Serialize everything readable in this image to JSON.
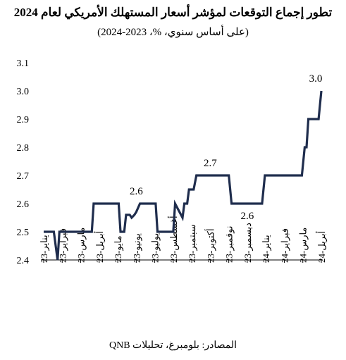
{
  "title": "تطور إجماع التوقعات لمؤشر أسعار المستهلك الأمريكي لعام 2024",
  "subtitle": "(على أساس سنوي، %، 2023-2024)",
  "source": "المصادر: بلومبرغ، تحليلات QNB",
  "chart_data": {
    "type": "line",
    "title": "تطور إجماع التوقعات لمؤشر أسعار المستهلك الأمريكي لعام 2024",
    "subtitle": "(على أساس سنوي، %، 2023-2024)",
    "xlabel": "",
    "ylabel": "",
    "ylim": [
      2.4,
      3.1
    ],
    "yticks": [
      "2.4",
      "2.5",
      "2.6",
      "2.7",
      "2.8",
      "2.9",
      "3.0",
      "3.1"
    ],
    "grid": false,
    "legend": "none",
    "line_color": "#1f2d4d",
    "categories": [
      "يناير-23",
      "فبراير-23",
      "مارس-23",
      "أبريل-23",
      "مايو-23",
      "يونيو-23",
      "يوليو-23",
      "أغسطس-23",
      "سبتمبر-23",
      "أكتوبر-23",
      "نوفمبر-23",
      "ديسمبر-23",
      "يناير-24",
      "فبراير-24",
      "مارس-24",
      "أبريل-24"
    ],
    "series": [
      {
        "x": [
          0,
          0.55,
          0.75,
          0.85,
          0.95,
          1.05,
          1.45,
          2.6,
          2.7,
          3.5,
          3.6,
          4.05,
          4.15,
          4.35,
          4.45,
          4.5,
          4.65,
          4.75,
          4.9,
          5.0,
          5.2,
          5.35,
          5.6,
          6.05,
          6.15,
          6.25,
          7.0,
          7.1,
          7.5,
          7.6,
          7.75,
          7.85,
          8.1,
          8.25,
          8.5,
          10.0,
          10.15,
          10.85,
          11.0,
          11.8,
          11.95,
          12.8,
          12.95,
          13.15,
          13.95,
          14.1,
          14.2,
          14.3,
          14.45,
          14.6,
          14.85,
          15.0
        ],
        "y": [
          2.5,
          2.5,
          2.4,
          2.5,
          2.5,
          2.5,
          2.5,
          2.5,
          2.6,
          2.6,
          2.6,
          2.6,
          2.5,
          2.5,
          2.56,
          2.56,
          2.56,
          2.55,
          2.56,
          2.57,
          2.6,
          2.6,
          2.6,
          2.6,
          2.5,
          2.5,
          2.5,
          2.6,
          2.55,
          2.6,
          2.6,
          2.65,
          2.65,
          2.7,
          2.7,
          2.7,
          2.6,
          2.6,
          2.6,
          2.6,
          2.7,
          2.7,
          2.7,
          2.7,
          2.7,
          2.8,
          2.8,
          2.9,
          2.9,
          2.9,
          2.9,
          3.0
        ]
      }
    ],
    "annotations": [
      {
        "text": "2.6",
        "x": 5.0,
        "y": 2.6
      },
      {
        "text": "2.7",
        "x": 9.0,
        "y": 2.7
      },
      {
        "text": "2.6",
        "x": 11.0,
        "y": 2.6
      },
      {
        "text": "3.0",
        "x": 15.0,
        "y": 3.0
      }
    ]
  }
}
